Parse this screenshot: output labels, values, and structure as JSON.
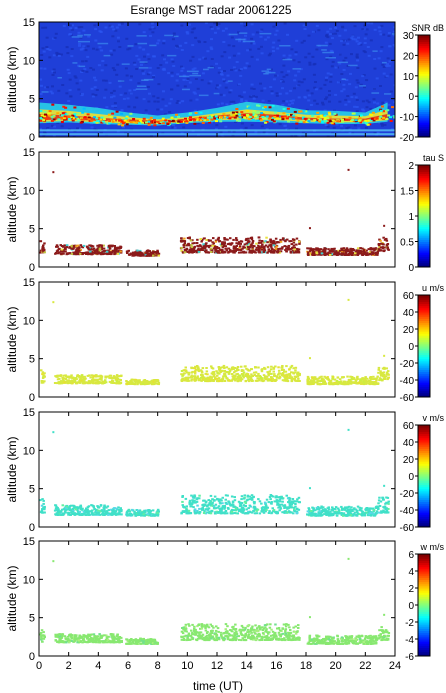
{
  "title": "Esrange MST radar 20061225",
  "xlabel": "time (UT)",
  "chart_data": [
    {
      "type": "heatmap",
      "ylabel": "altitude (km)",
      "colorbar_label": "SNR dB",
      "colorbar_ticks": [
        -20,
        -10,
        0,
        10,
        20,
        30
      ],
      "colorbar_range": [
        -20,
        30
      ],
      "xlim": [
        0,
        24
      ],
      "ylim": [
        0,
        15
      ],
      "yticks": [
        0,
        5,
        10,
        15
      ],
      "fill": "full",
      "background_color": "#1f3fd8",
      "layers": [
        {
          "x": [
            0,
            2,
            4,
            6,
            8,
            10,
            12,
            14,
            16,
            18,
            20,
            22,
            23.5
          ],
          "y_low": [
            1.8,
            1.9,
            1.7,
            1.6,
            1.5,
            1.8,
            2.0,
            2.0,
            1.9,
            1.8,
            1.7,
            1.7,
            2.0
          ],
          "y_high": [
            4.5,
            4.2,
            3.8,
            3.2,
            2.8,
            3.2,
            3.8,
            4.6,
            4.2,
            3.5,
            3.4,
            3.2,
            4.5
          ],
          "color": "#28d0e8"
        },
        {
          "x": [
            0,
            2,
            4,
            6,
            8,
            10,
            12,
            14,
            16,
            18,
            20,
            22,
            23.5
          ],
          "y_low": [
            2.0,
            2.1,
            1.9,
            1.8,
            1.7,
            2.0,
            2.2,
            2.3,
            2.2,
            2.0,
            1.9,
            1.9,
            2.2
          ],
          "y_high": [
            3.6,
            3.4,
            3.0,
            2.6,
            2.3,
            2.6,
            3.1,
            3.6,
            3.3,
            2.9,
            2.8,
            2.7,
            3.6
          ],
          "color": "#f0e030"
        },
        {
          "x": [
            0,
            2,
            4,
            6,
            8,
            10,
            12,
            14,
            16,
            18,
            20,
            22,
            23.5
          ],
          "y_low": [
            2.2,
            2.3,
            2.1,
            2.0,
            1.9,
            2.2,
            2.4,
            2.6,
            2.5,
            2.2,
            2.1,
            2.1,
            2.4
          ],
          "y_high": [
            3.0,
            2.8,
            2.5,
            2.3,
            2.1,
            2.4,
            2.8,
            3.1,
            2.9,
            2.5,
            2.4,
            2.4,
            3.0
          ],
          "color": "#e03018"
        }
      ]
    },
    {
      "type": "heatmap",
      "ylabel": "altitude (km)",
      "colorbar_label": "tau S",
      "colorbar_ticks": [
        0,
        0.5,
        1,
        1.5,
        2
      ],
      "colorbar_range": [
        0,
        2
      ],
      "xlim": [
        0,
        24
      ],
      "ylim": [
        0,
        15
      ],
      "yticks": [
        0,
        5,
        10,
        15
      ],
      "fill": "sparse",
      "point_color": "#8b1a1a",
      "accent_colors": [
        "#e8e040",
        "#40d0d0",
        "#c0c040",
        "#f0a020"
      ],
      "segments": [
        [
          0,
          0.3,
          2.0,
          3.5
        ],
        [
          1.0,
          5.5,
          1.8,
          3.0
        ],
        [
          5.8,
          8.0,
          1.6,
          2.3
        ],
        [
          9.5,
          17.5,
          2.0,
          4.0
        ],
        [
          18.0,
          22.8,
          1.7,
          2.6
        ],
        [
          22.8,
          23.5,
          2.2,
          4.0
        ]
      ]
    },
    {
      "type": "heatmap",
      "ylabel": "altitude (km)",
      "colorbar_label": "u m/s",
      "colorbar_ticks": [
        -60,
        -40,
        -20,
        0,
        20,
        40,
        60
      ],
      "colorbar_range": [
        -60,
        60
      ],
      "xlim": [
        0,
        24
      ],
      "ylim": [
        0,
        15
      ],
      "yticks": [
        0,
        5,
        10,
        15
      ],
      "fill": "sparse",
      "point_color": "#d8e840",
      "accent_colors": [
        "#e8e030",
        "#c8f040"
      ],
      "segments": [
        [
          0,
          0.3,
          2.0,
          3.8
        ],
        [
          1.0,
          5.5,
          1.9,
          3.0
        ],
        [
          5.8,
          8.0,
          1.8,
          2.4
        ],
        [
          9.5,
          17.5,
          2.2,
          4.2
        ],
        [
          18.0,
          22.8,
          1.8,
          2.8
        ],
        [
          22.8,
          23.5,
          2.3,
          4.0
        ]
      ]
    },
    {
      "type": "heatmap",
      "ylabel": "altitude (km)",
      "colorbar_label": "v m/s",
      "colorbar_ticks": [
        -60,
        -40,
        -20,
        0,
        20,
        40,
        60
      ],
      "colorbar_range": [
        -60,
        60
      ],
      "xlim": [
        0,
        24
      ],
      "ylim": [
        0,
        15
      ],
      "yticks": [
        0,
        5,
        10,
        15
      ],
      "fill": "sparse",
      "point_color": "#40e0c8",
      "accent_colors": [
        "#58d8e8",
        "#60f0a0"
      ],
      "segments": [
        [
          0,
          0.3,
          2.0,
          3.8
        ],
        [
          1.0,
          5.5,
          1.7,
          3.0
        ],
        [
          5.8,
          8.0,
          1.6,
          2.4
        ],
        [
          9.5,
          17.5,
          1.9,
          4.3
        ],
        [
          18.0,
          22.8,
          1.6,
          2.8
        ],
        [
          22.8,
          23.5,
          2.0,
          4.0
        ]
      ]
    },
    {
      "type": "heatmap",
      "ylabel": "altitude (km)",
      "colorbar_label": "w m/s",
      "colorbar_ticks": [
        -6,
        -4,
        -2,
        0,
        2,
        4,
        6
      ],
      "colorbar_range": [
        -6,
        6
      ],
      "xlim": [
        0,
        24
      ],
      "ylim": [
        0,
        15
      ],
      "yticks": [
        0,
        5,
        10,
        15
      ],
      "fill": "sparse",
      "point_color": "#88e870",
      "accent_colors": [
        "#a8f080",
        "#70e090"
      ],
      "segments": [
        [
          0,
          0.3,
          2.0,
          3.8
        ],
        [
          1.0,
          5.5,
          1.9,
          3.0
        ],
        [
          5.8,
          8.0,
          1.7,
          2.4
        ],
        [
          9.5,
          17.5,
          2.2,
          4.3
        ],
        [
          18.0,
          22.8,
          1.7,
          2.8
        ],
        [
          22.8,
          23.5,
          2.2,
          4.0
        ]
      ]
    }
  ],
  "xticks": [
    0,
    2,
    4,
    6,
    8,
    10,
    12,
    14,
    16,
    18,
    20,
    22,
    24
  ]
}
